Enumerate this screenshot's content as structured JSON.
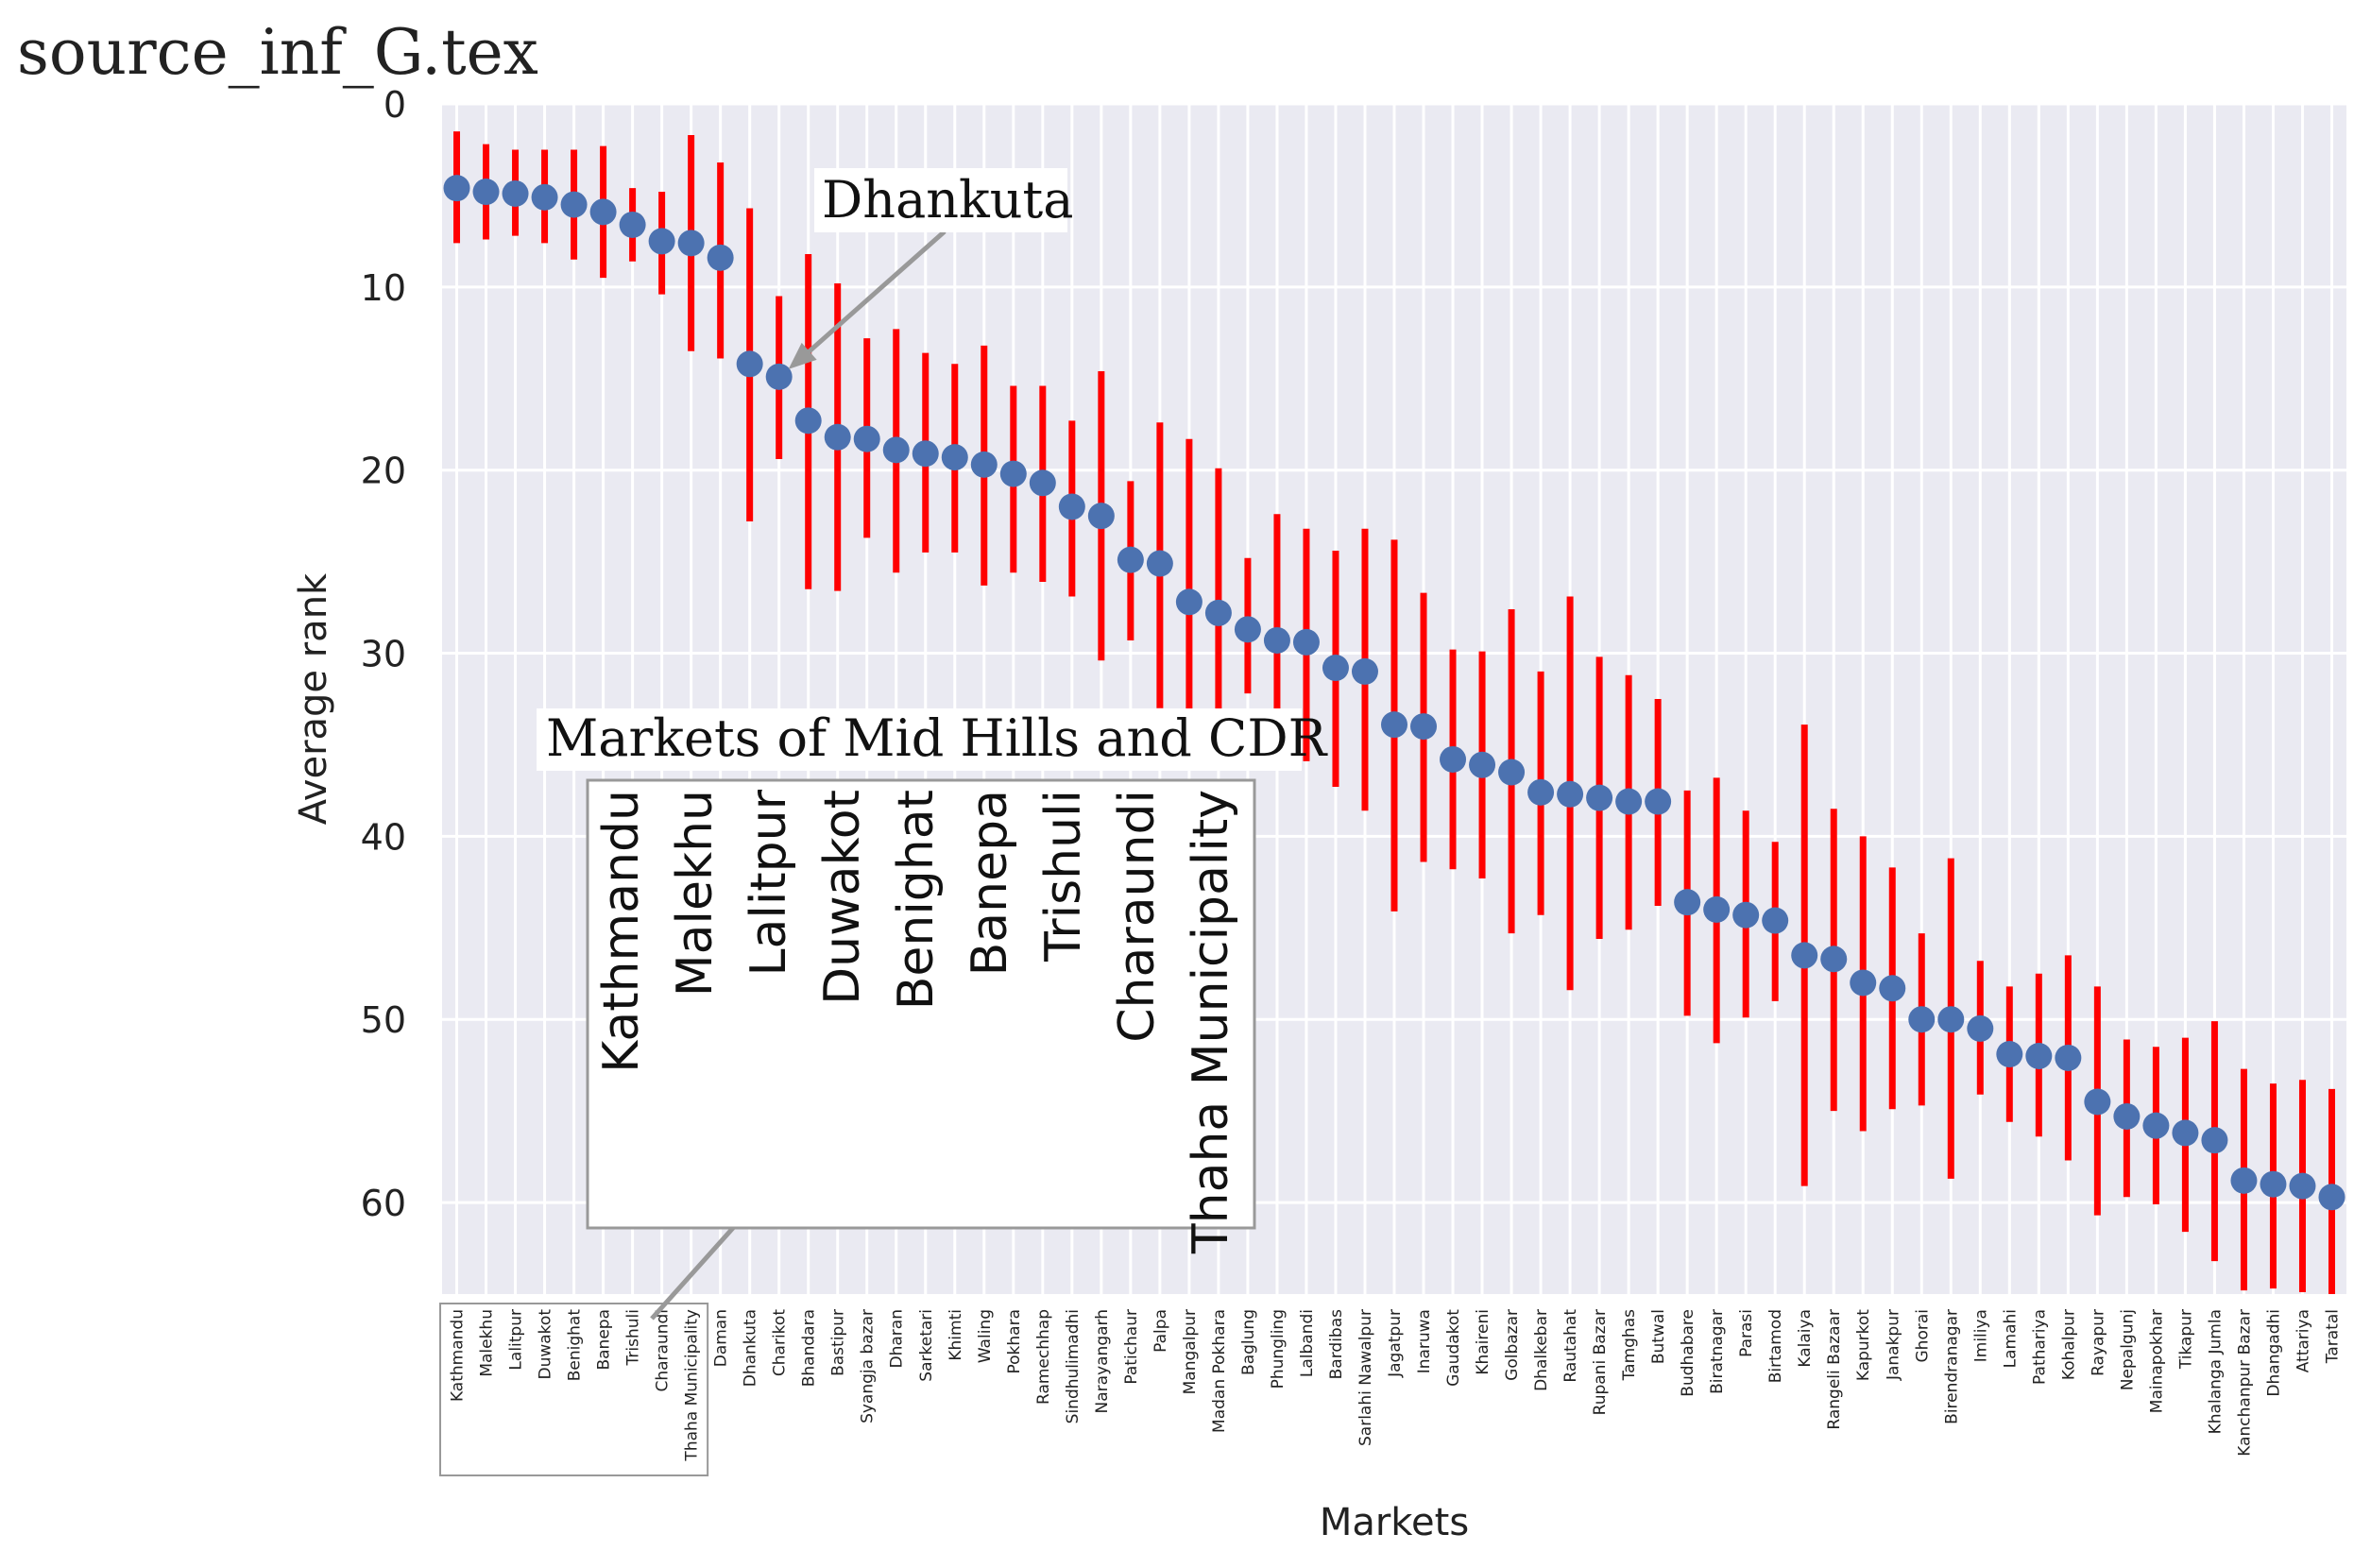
{
  "figure": {
    "source_label": "source_inf_G.tex"
  },
  "chart_data": {
    "type": "scatter",
    "xlabel": "Markets",
    "ylabel": "Average rank",
    "ylim": [
      65,
      0
    ],
    "yticks": [
      0,
      10,
      20,
      30,
      40,
      50,
      60
    ],
    "y_inverted": true,
    "grid": true,
    "error_bar_color": "#ff0000",
    "marker_color": "#4c72b0",
    "background_color": "#eaeaf2",
    "grid_color": "#ffffff",
    "categories": [
      "Kathmandu",
      "Malekhu",
      "Lalitpur",
      "Duwakot",
      "Benighat",
      "Banepa",
      "Trishuli",
      "Charaundi",
      "Thaha Municipality",
      "Daman",
      "Dhankuta",
      "Charikot",
      "Bhandara",
      "Bastipur",
      "Syangja bazar",
      "Dharan",
      "Sarketari",
      "Khimti",
      "Waling",
      "Pokhara",
      "Ramechhap",
      "Sindhulimadhi",
      "Narayangarh",
      "Patichaur",
      "Palpa",
      "Mangalpur",
      "Madan Pokhara",
      "Baglung",
      "Phungling",
      "Lalbandi",
      "Bardibas",
      "Sarlahi Nawalpur",
      "Jagatpur",
      "Inaruwa",
      "Gaudakot",
      "Khaireni",
      "Golbazar",
      "Dhalkebar",
      "Rautahat",
      "Rupani Bazar",
      "Tamghas",
      "Butwal",
      "Budhabare",
      "Biratnagar",
      "Parasi",
      "Birtamod",
      "Kalaiya",
      "Rangeli Bazaar",
      "Kapurkot",
      "Janakpur",
      "Ghorai",
      "Birendranagar",
      "Imiliya",
      "Lamahi",
      "Pathariya",
      "Kohalpur",
      "Rayapur",
      "Nepalgunj",
      "Mainapokhar",
      "Tikapur",
      "Khalanga Jumla",
      "Kanchanpur Bazar",
      "Dhangadhi",
      "Attariya",
      "Taratal"
    ],
    "values": [
      4.6,
      4.8,
      4.9,
      5.1,
      5.5,
      5.9,
      6.6,
      7.5,
      7.6,
      8.4,
      14.2,
      14.9,
      17.3,
      18.2,
      18.3,
      18.9,
      19.1,
      19.3,
      19.7,
      20.2,
      20.7,
      22.0,
      22.5,
      24.9,
      25.1,
      27.2,
      27.8,
      28.7,
      29.3,
      29.4,
      30.8,
      31.0,
      33.9,
      34.0,
      35.8,
      36.1,
      36.5,
      37.6,
      37.7,
      37.9,
      38.1,
      38.1,
      43.6,
      44.0,
      44.3,
      44.6,
      46.5,
      46.7,
      48.0,
      48.3,
      50.0,
      50.0,
      50.5,
      51.9,
      52.0,
      52.1,
      54.5,
      55.3,
      55.8,
      56.2,
      56.6,
      58.8,
      59.0,
      59.1,
      59.7
    ],
    "error_low": [
      1.5,
      2.2,
      2.5,
      2.5,
      2.5,
      2.3,
      4.6,
      4.8,
      1.7,
      3.2,
      5.7,
      10.5,
      8.2,
      9.8,
      12.8,
      12.3,
      13.6,
      14.2,
      13.2,
      15.4,
      15.4,
      17.3,
      14.6,
      20.6,
      17.4,
      18.3,
      19.9,
      24.8,
      22.4,
      23.2,
      24.4,
      23.2,
      23.8,
      26.7,
      29.8,
      29.9,
      27.6,
      31.0,
      26.9,
      30.2,
      31.2,
      32.5,
      37.5,
      36.8,
      38.6,
      40.3,
      33.9,
      38.5,
      40.0,
      41.7,
      45.3,
      41.2,
      46.8,
      48.2,
      47.5,
      46.5,
      48.2,
      51.1,
      51.5,
      51.0,
      50.1,
      52.7,
      53.5,
      53.3,
      53.8
    ],
    "error_high": [
      7.6,
      7.4,
      7.2,
      7.6,
      8.5,
      9.5,
      8.6,
      10.4,
      13.5,
      13.9,
      22.8,
      19.4,
      26.5,
      26.6,
      23.7,
      25.6,
      24.5,
      24.5,
      26.3,
      25.6,
      26.1,
      26.9,
      30.4,
      29.3,
      33.0,
      34.0,
      35.5,
      32.2,
      36.3,
      35.9,
      37.3,
      38.6,
      44.1,
      41.4,
      41.8,
      42.3,
      45.3,
      44.3,
      48.4,
      45.6,
      45.1,
      43.8,
      49.8,
      51.3,
      49.9,
      49.0,
      59.1,
      55.0,
      56.1,
      54.9,
      54.7,
      58.7,
      54.1,
      55.6,
      56.4,
      57.7,
      60.7,
      59.7,
      60.1,
      61.6,
      63.2,
      64.8,
      64.7,
      64.9,
      65.0
    ]
  },
  "annotations": {
    "dhankuta_label": "Dhankuta",
    "inset_title": "Markets of Mid Hills and CDR",
    "inset_markets": [
      "Kathmandu",
      "Malekhu",
      "Lalitpur",
      "Duwakot",
      "Benighat",
      "Banepa",
      "Trishuli",
      "Charaundi",
      "Thaha Municipality"
    ]
  }
}
